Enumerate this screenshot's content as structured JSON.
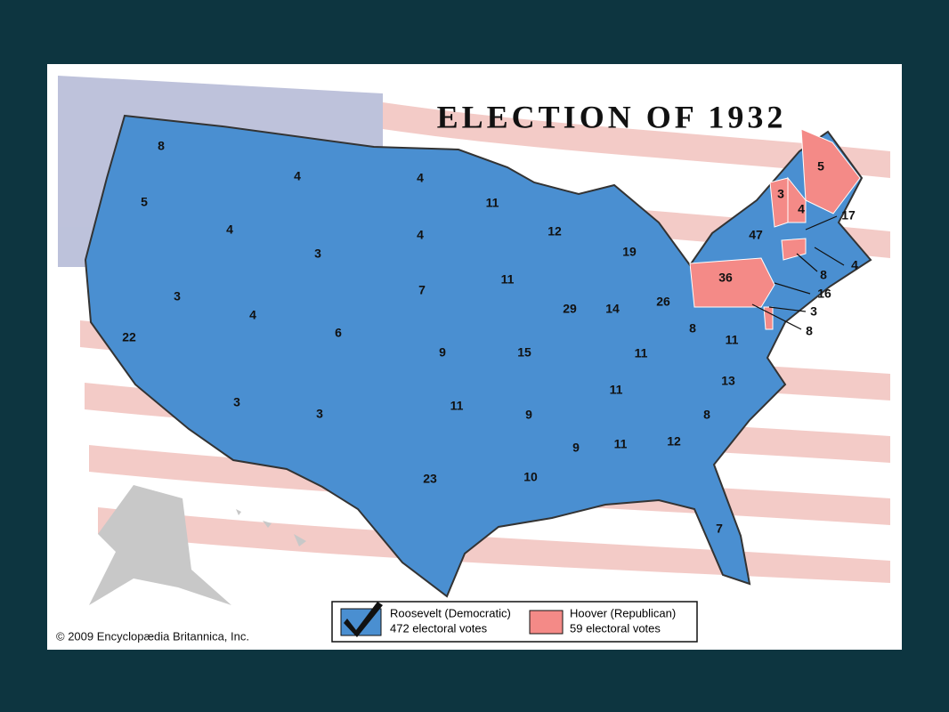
{
  "title": "ELECTION OF 1932",
  "copyright": "© 2009 Encyclopædia Britannica, Inc.",
  "candidates": [
    {
      "name": "Roosevelt (Democratic)",
      "votes_text": "472 electoral votes",
      "color": "#4a8fd1",
      "states": [
        8,
        5,
        4,
        4,
        3,
        4,
        4,
        7,
        11,
        12,
        19,
        11,
        29,
        14,
        26,
        3,
        22,
        4,
        6,
        9,
        15,
        11,
        8,
        11,
        13,
        11,
        8,
        3,
        3,
        11,
        9,
        9,
        11,
        12,
        23,
        10,
        7,
        47,
        17,
        4,
        16,
        8
      ]
    },
    {
      "name": "Hoover (Republican)",
      "votes_text": "59 electoral votes",
      "color": "#f48a87",
      "states": [
        36,
        5,
        3,
        4,
        8,
        3
      ]
    }
  ]
}
